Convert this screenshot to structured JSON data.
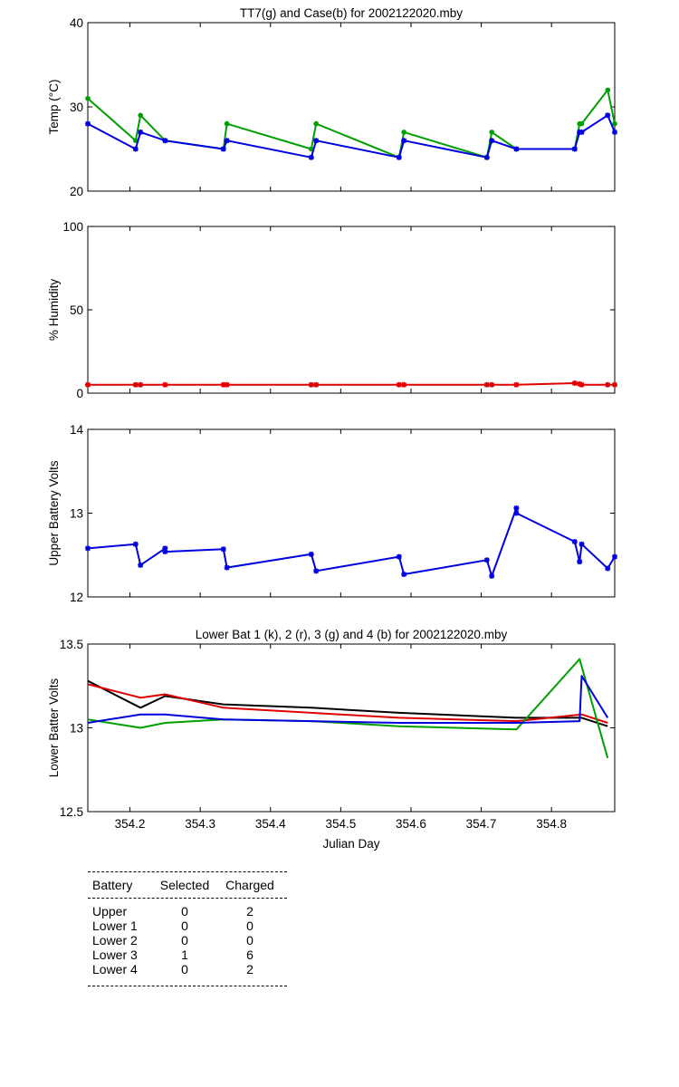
{
  "chart_data": [
    {
      "type": "line",
      "title": "TT7(g) and Case(b) for 2002122020.mby",
      "xlabel": "",
      "ylabel": "Temp  (°C)",
      "xlim": [
        354.14,
        354.89
      ],
      "ylim": [
        20,
        40
      ],
      "yticks": [
        20,
        30,
        40
      ],
      "series": [
        {
          "color": "#00a000",
          "marker": "dot",
          "x": [
            354.14,
            354.208,
            354.215,
            354.25,
            354.333,
            354.338,
            354.458,
            354.465,
            354.583,
            354.59,
            354.708,
            354.715,
            354.75,
            354.833,
            354.84,
            354.843,
            354.88,
            354.89
          ],
          "y": [
            31,
            26,
            29,
            26,
            25,
            28,
            25,
            28,
            24,
            27,
            24,
            27,
            25,
            25,
            28,
            28,
            32,
            28
          ]
        },
        {
          "color": "#0000e0",
          "marker": "star",
          "x": [
            354.14,
            354.208,
            354.215,
            354.25,
            354.333,
            354.338,
            354.458,
            354.465,
            354.583,
            354.59,
            354.708,
            354.715,
            354.75,
            354.833,
            354.84,
            354.843,
            354.88,
            354.89
          ],
          "y": [
            28,
            25,
            27,
            26,
            25,
            26,
            24,
            26,
            24,
            26,
            24,
            26,
            25,
            25,
            27,
            27,
            29,
            27
          ]
        }
      ]
    },
    {
      "type": "line",
      "title": "",
      "xlabel": "",
      "ylabel": "% Humidity",
      "xlim": [
        354.14,
        354.89
      ],
      "ylim": [
        0,
        100
      ],
      "yticks": [
        0,
        50,
        100
      ],
      "series": [
        {
          "color": "#e00000",
          "marker": "star",
          "x": [
            354.14,
            354.208,
            354.215,
            354.25,
            354.333,
            354.338,
            354.458,
            354.465,
            354.583,
            354.59,
            354.708,
            354.715,
            354.75,
            354.833,
            354.84,
            354.843,
            354.88,
            354.89
          ],
          "y": [
            5,
            5,
            5,
            5,
            5,
            5,
            5,
            5,
            5,
            5,
            5,
            5,
            5,
            6,
            5.5,
            5,
            5,
            5
          ]
        }
      ]
    },
    {
      "type": "line",
      "title": "",
      "xlabel": "",
      "ylabel": "Upper Battery Volts",
      "xlim": [
        354.14,
        354.89
      ],
      "ylim": [
        12,
        14
      ],
      "yticks": [
        12,
        13,
        14
      ],
      "series": [
        {
          "color": "#0000e0",
          "marker": "star",
          "x": [
            354.14,
            354.208,
            354.215,
            354.25,
            354.25,
            354.333,
            354.338,
            354.458,
            354.465,
            354.583,
            354.59,
            354.708,
            354.715,
            354.75,
            354.75,
            354.833,
            354.84,
            354.843,
            354.88,
            354.89
          ],
          "y": [
            12.58,
            12.63,
            12.38,
            12.58,
            12.54,
            12.57,
            12.35,
            12.51,
            12.31,
            12.48,
            12.27,
            12.44,
            12.25,
            13.06,
            13.0,
            12.66,
            12.42,
            12.63,
            12.34,
            12.48
          ]
        }
      ]
    },
    {
      "type": "line",
      "title": "Lower Bat 1 (k), 2 (r), 3 (g) and 4 (b) for 2002122020.mby",
      "xlabel": "Julian Day",
      "ylabel": "Lower Batter Volts",
      "xlim": [
        354.14,
        354.89
      ],
      "ylim": [
        12.5,
        13.5
      ],
      "yticks": [
        12.5,
        13,
        13.5
      ],
      "xticks": [
        354.2,
        354.3,
        354.4,
        354.5,
        354.6,
        354.7,
        354.8
      ],
      "series": [
        {
          "color": "#000000",
          "x": [
            354.14,
            354.215,
            354.25,
            354.333,
            354.458,
            354.583,
            354.75,
            354.843,
            354.88
          ],
          "y": [
            13.28,
            13.12,
            13.19,
            13.14,
            13.12,
            13.09,
            13.06,
            13.06,
            13.01
          ]
        },
        {
          "color": "#e00000",
          "x": [
            354.14,
            354.215,
            354.25,
            354.333,
            354.458,
            354.583,
            354.75,
            354.843,
            354.88
          ],
          "y": [
            13.26,
            13.18,
            13.2,
            13.12,
            13.09,
            13.06,
            13.04,
            13.08,
            13.03
          ]
        },
        {
          "color": "#00a000",
          "x": [
            354.14,
            354.215,
            354.25,
            354.333,
            354.458,
            354.583,
            354.75,
            354.84,
            354.88
          ],
          "y": [
            13.05,
            13.0,
            13.03,
            13.05,
            13.04,
            13.01,
            12.99,
            13.41,
            12.82
          ]
        },
        {
          "color": "#0000e0",
          "x": [
            354.14,
            354.215,
            354.25,
            354.333,
            354.458,
            354.583,
            354.75,
            354.84,
            354.843,
            354.88
          ],
          "y": [
            13.03,
            13.08,
            13.08,
            13.05,
            13.04,
            13.03,
            13.03,
            13.04,
            13.31,
            13.06
          ]
        }
      ]
    }
  ],
  "xtick_labels": [
    "354.2",
    "354.3",
    "354.4",
    "354.5",
    "354.6",
    "354.7",
    "354.8"
  ],
  "battery_table": {
    "headers": [
      "Battery",
      "Selected",
      "Charged"
    ],
    "rows": [
      {
        "battery": "Upper",
        "selected": "0",
        "charged": "2"
      },
      {
        "battery": "Lower 1",
        "selected": "0",
        "charged": "0"
      },
      {
        "battery": "Lower 2",
        "selected": "0",
        "charged": "0"
      },
      {
        "battery": "Lower 3",
        "selected": "1",
        "charged": "6"
      },
      {
        "battery": "Lower 4",
        "selected": "0",
        "charged": "2"
      }
    ]
  }
}
